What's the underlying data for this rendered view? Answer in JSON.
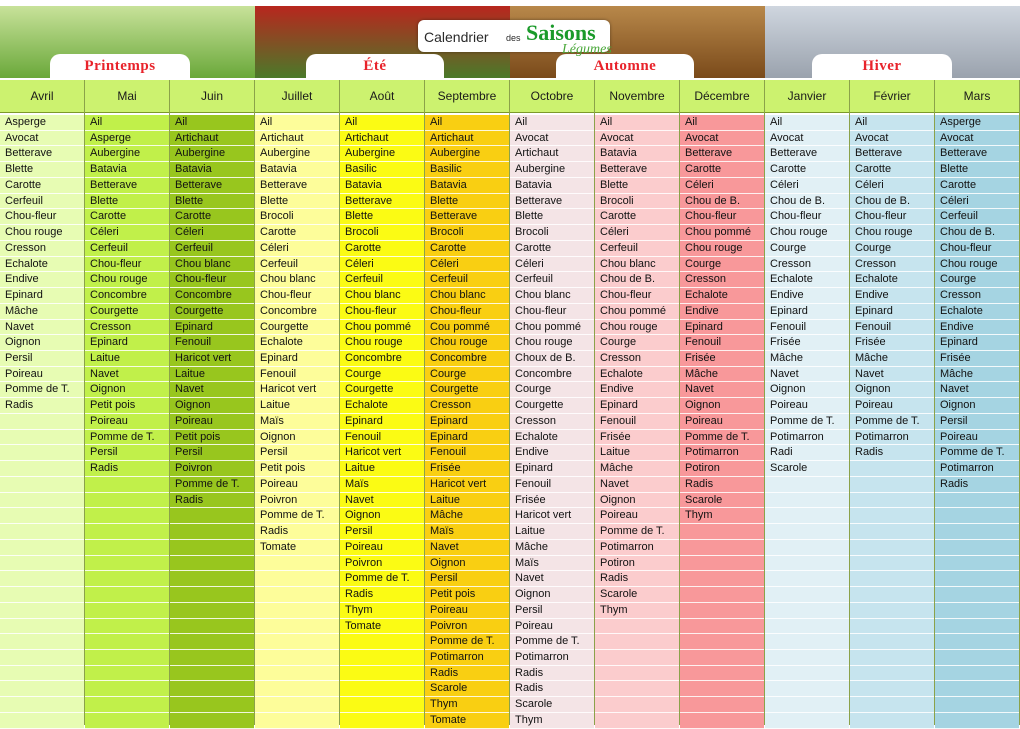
{
  "header": {
    "logo_calendrier": "Calendrier",
    "logo_des": "des",
    "logo_saisons": "Saisons",
    "logo_legumes": "Légumes"
  },
  "seasons": [
    {
      "label": "Printemps",
      "sky": "#c8e29a",
      "ground": "#6aa83a"
    },
    {
      "label": "Été",
      "sky": "#b8261e",
      "ground": "#4a7a2a"
    },
    {
      "label": "Automne",
      "sky": "#b8884a",
      "ground": "#7a4a1a"
    },
    {
      "label": "Hiver",
      "sky": "#cfd6df",
      "ground": "#9aa2ad"
    }
  ],
  "months": [
    {
      "name": "Avril",
      "color": "#e7fcb3",
      "items": [
        "Asperge",
        "Avocat",
        "Betterave",
        "Blette",
        "Carotte",
        "Cerfeuil",
        "Chou-fleur",
        "Chou rouge",
        "Cresson",
        "Echalote",
        "Endive",
        "Epinard",
        "Mâche",
        "Navet",
        "Oignon",
        "Persil",
        "Poireau",
        "Pomme de T.",
        "Radis"
      ]
    },
    {
      "name": "Mai",
      "color": "#c1f04a",
      "items": [
        "Ail",
        "Asperge",
        "Aubergine",
        "Batavia",
        "Betterave",
        "Blette",
        "Carotte",
        "Céleri",
        "Cerfeuil",
        "Chou-fleur",
        "Chou rouge",
        "Concombre",
        "Courgette",
        "Cresson",
        "Epinard",
        "Laitue",
        "Navet",
        "Oignon",
        "Petit pois",
        "Poireau",
        "Pomme de T.",
        "Persil",
        "Radis"
      ]
    },
    {
      "name": "Juin",
      "color": "#98c61e",
      "items": [
        "Ail",
        "Artichaut",
        "Aubergine",
        "Batavia",
        "Betterave",
        "Blette",
        "Carotte",
        "Céleri",
        "Cerfeuil",
        "Chou blanc",
        "Chou-fleur",
        "Concombre",
        "Courgette",
        "Epinard",
        "Fenouil",
        "Haricot vert",
        "Laitue",
        "Navet",
        "Oignon",
        "Poireau",
        "Petit pois",
        "Persil",
        "Poivron",
        "Pomme de T.",
        "Radis"
      ]
    },
    {
      "name": "Juillet",
      "color": "#fdfd9a",
      "items": [
        "Ail",
        "Artichaut",
        "Aubergine",
        "Batavia",
        "Betterave",
        "Blette",
        "Brocoli",
        "Carotte",
        "Céleri",
        "Cerfeuil",
        "Chou blanc",
        "Chou-fleur",
        "Concombre",
        "Courgette",
        "Echalote",
        "Epinard",
        "Fenouil",
        "Haricot vert",
        "Laitue",
        "Maïs",
        "Oignon",
        "Persil",
        "Petit pois",
        "Poireau",
        "Poivron",
        "Pomme de T.",
        "Radis",
        "Tomate"
      ]
    },
    {
      "name": "Août",
      "color": "#fbfb14",
      "items": [
        "Ail",
        "Artichaut",
        "Aubergine",
        "Basilic",
        "Batavia",
        "Betterave",
        "Blette",
        "Brocoli",
        "Carotte",
        "Céleri",
        "Cerfeuil",
        "Chou blanc",
        "Chou-fleur",
        "Chou pommé",
        "Chou rouge",
        "Concombre",
        "Courge",
        "Courgette",
        "Echalote",
        "Epinard",
        "Fenouil",
        "Haricot vert",
        "Laitue",
        "Maïs",
        "Navet",
        "Oignon",
        "Persil",
        "Poireau",
        "Poivron",
        "Pomme de T.",
        "Radis",
        "Thym",
        "Tomate"
      ]
    },
    {
      "name": "Septembre",
      "color": "#f9cf12",
      "items": [
        "Ail",
        "Artichaut",
        "Aubergine",
        "Basilic",
        "Batavia",
        "Blette",
        "Betterave",
        "Brocoli",
        "Carotte",
        "Céleri",
        "Cerfeuil",
        "Chou blanc",
        "Chou-fleur",
        "Cou pommé",
        "Chou rouge",
        "Concombre",
        "Courge",
        "Courgette",
        "Cresson",
        "Epinard",
        "Epinard",
        "Fenouil",
        "Frisée",
        "Haricot vert",
        "Laitue",
        "Mâche",
        "Maïs",
        "Navet",
        "Oignon",
        "Persil",
        "Petit pois",
        "Poireau",
        "Poivron",
        "Pomme de T.",
        "Potimarron",
        "Radis",
        "Scarole",
        "Thym",
        "Tomate"
      ]
    },
    {
      "name": "Octobre",
      "color": "#f4e4e6",
      "items": [
        "Ail",
        "Avocat",
        "Artichaut",
        "Aubergine",
        "Batavia",
        "Betterave",
        "Blette",
        "Brocoli",
        "Carotte",
        "Céleri",
        "Cerfeuil",
        "Chou blanc",
        "Chou-fleur",
        "Chou pommé",
        "Chou rouge",
        "Choux de B.",
        "Concombre",
        "Courge",
        "Courgette",
        "Cresson",
        "Echalote",
        "Endive",
        "Epinard",
        "Fenouil",
        "Frisée",
        "Haricot vert",
        "Laitue",
        "Mâche",
        "Maïs",
        "Navet",
        "Oignon",
        "Persil",
        "Poireau",
        "Pomme de T.",
        "Potimarron",
        "Radis",
        "Radis",
        "Scarole",
        "Thym"
      ]
    },
    {
      "name": "Novembre",
      "color": "#fbcccd",
      "items": [
        "Ail",
        "Avocat",
        "Batavia",
        "Betterave",
        "Blette",
        "Brocoli",
        "Carotte",
        "Céleri",
        "Cerfeuil",
        "Chou blanc",
        "Chou de B.",
        "Chou-fleur",
        "Chou pommé",
        "Chou rouge",
        "Courge",
        "Cresson",
        "Echalote",
        "Endive",
        "Epinard",
        "Fenouil",
        "Frisée",
        "Laitue",
        "Mâche",
        "Navet",
        "Oignon",
        "Poireau",
        "Pomme de T.",
        "Potimarron",
        "Potiron",
        "Radis",
        "Scarole",
        "Thym"
      ]
    },
    {
      "name": "Décembre",
      "color": "#f8989a",
      "items": [
        "Ail",
        "Avocat",
        "Betterave",
        "Carotte",
        "Céleri",
        "Chou de B.",
        "Chou-fleur",
        "Chou pommé",
        "Chou rouge",
        "Courge",
        "Cresson",
        "Echalote",
        "Endive",
        "Epinard",
        "Fenouil",
        "Frisée",
        "Mâche",
        "Navet",
        "Oignon",
        "Poireau",
        "Pomme de T.",
        "Potimarron",
        "Potiron",
        "Radis",
        "Scarole",
        "Thym"
      ]
    },
    {
      "name": "Janvier",
      "color": "#e1f0f5",
      "items": [
        "Ail",
        "Avocat",
        "Betterave",
        "Carotte",
        "Céleri",
        "Chou de B.",
        "Chou-fleur",
        "Chou rouge",
        "Courge",
        "Cresson",
        "Echalote",
        "Endive",
        "Epinard",
        "Fenouil",
        "Frisée",
        "Mâche",
        "Navet",
        "Oignon",
        "Poireau",
        "Pomme de T.",
        "Potimarron",
        "Radi",
        "Scarole"
      ]
    },
    {
      "name": "Février",
      "color": "#c6e4ee",
      "items": [
        "Ail",
        "Avocat",
        "Betterave",
        "Carotte",
        "Céleri",
        "Chou de B.",
        "Chou-fleur",
        "Chou rouge",
        "Courge",
        "Cresson",
        "Echalote",
        "Endive",
        "Epinard",
        "Fenouil",
        "Frisée",
        "Mâche",
        "Navet",
        "Oignon",
        "Poireau",
        "Pomme de T.",
        "Potimarron",
        "Radis"
      ]
    },
    {
      "name": "Mars",
      "color": "#a5d4e2",
      "items": [
        "Asperge",
        "Avocat",
        "Betterave",
        "Blette",
        "Carotte",
        "Céleri",
        "Cerfeuil",
        "Chou de B.",
        "Chou-fleur",
        "Chou rouge",
        "Courge",
        "Cresson",
        "Echalote",
        "Endive",
        "Epinard",
        "Frisée",
        "Mâche",
        "Navet",
        "Oignon",
        "Persil",
        "Poireau",
        "Pomme de T.",
        "Potimarron",
        "Radis"
      ]
    }
  ]
}
